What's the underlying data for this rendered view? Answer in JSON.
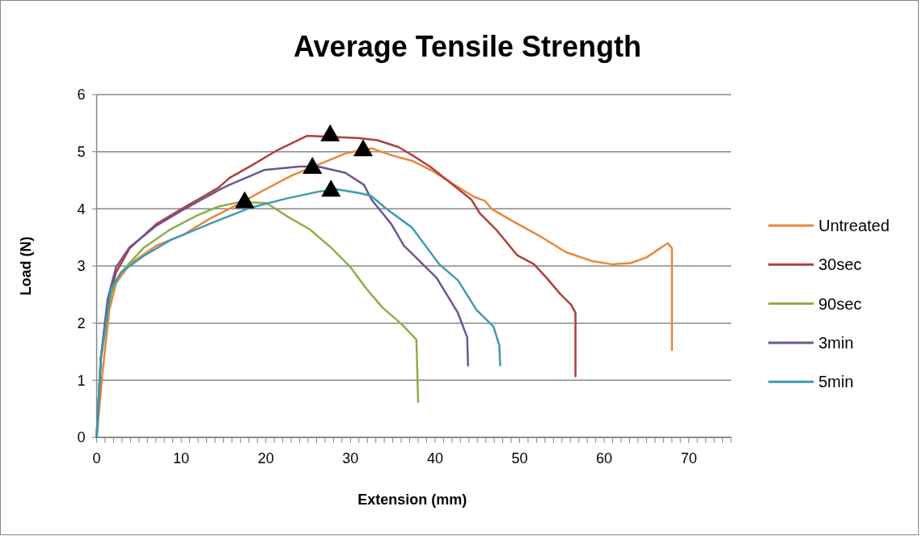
{
  "chart_data": {
    "type": "line",
    "title": "Average Tensile Strength",
    "xlabel": "Extension (mm)",
    "ylabel": "Load (N)",
    "xlim": [
      0,
      75
    ],
    "ylim": [
      0,
      6
    ],
    "xticks": [
      0,
      {
        "value": 1,
        "label": null
      },
      {
        "value": 2,
        "label": null
      },
      {
        "value": 3,
        "label": null
      },
      {
        "value": 4,
        "label": null
      },
      {
        "value": 5,
        "label": null
      },
      {
        "value": 6,
        "label": null
      },
      {
        "value": 7,
        "label": null
      },
      {
        "value": 8,
        "label": null
      },
      {
        "value": 9,
        "label": null
      },
      10,
      {
        "value": 11,
        "label": null
      },
      {
        "value": 12,
        "label": null
      },
      {
        "value": 13,
        "label": null
      },
      {
        "value": 14,
        "label": null
      },
      {
        "value": 15,
        "label": null
      },
      {
        "value": 16,
        "label": null
      },
      {
        "value": 17,
        "label": null
      },
      {
        "value": 18,
        "label": null
      },
      {
        "value": 19,
        "label": null
      },
      20,
      {
        "value": 21,
        "label": null
      },
      {
        "value": 22,
        "label": null
      },
      {
        "value": 23,
        "label": null
      },
      {
        "value": 24,
        "label": null
      },
      {
        "value": 25,
        "label": null
      },
      {
        "value": 26,
        "label": null
      },
      {
        "value": 27,
        "label": null
      },
      {
        "value": 28,
        "label": null
      },
      {
        "value": 29,
        "label": null
      },
      30,
      {
        "value": 31,
        "label": null
      },
      {
        "value": 32,
        "label": null
      },
      {
        "value": 33,
        "label": null
      },
      {
        "value": 34,
        "label": null
      },
      {
        "value": 35,
        "label": null
      },
      {
        "value": 36,
        "label": null
      },
      {
        "value": 37,
        "label": null
      },
      {
        "value": 38,
        "label": null
      },
      {
        "value": 39,
        "label": null
      },
      40,
      {
        "value": 41,
        "label": null
      },
      {
        "value": 42,
        "label": null
      },
      {
        "value": 43,
        "label": null
      },
      {
        "value": 44,
        "label": null
      },
      {
        "value": 45,
        "label": null
      },
      {
        "value": 46,
        "label": null
      },
      {
        "value": 47,
        "label": null
      },
      {
        "value": 48,
        "label": null
      },
      {
        "value": 49,
        "label": null
      },
      50,
      {
        "value": 51,
        "label": null
      },
      {
        "value": 52,
        "label": null
      },
      {
        "value": 53,
        "label": null
      },
      {
        "value": 54,
        "label": null
      },
      {
        "value": 55,
        "label": null
      },
      {
        "value": 56,
        "label": null
      },
      {
        "value": 57,
        "label": null
      },
      {
        "value": 58,
        "label": null
      },
      {
        "value": 59,
        "label": null
      },
      60,
      {
        "value": 61,
        "label": null
      },
      {
        "value": 62,
        "label": null
      },
      {
        "value": 63,
        "label": null
      },
      {
        "value": 64,
        "label": null
      },
      {
        "value": 65,
        "label": null
      },
      {
        "value": 66,
        "label": null
      },
      {
        "value": 67,
        "label": null
      },
      {
        "value": 68,
        "label": null
      },
      {
        "value": 69,
        "label": null
      },
      70,
      {
        "value": 71,
        "label": null
      },
      {
        "value": 72,
        "label": null
      },
      {
        "value": 73,
        "label": null
      },
      {
        "value": 74,
        "label": null
      },
      {
        "value": 75,
        "label": null
      }
    ],
    "yticks": [
      0,
      1,
      2,
      3,
      4,
      5,
      6
    ],
    "grid": "y",
    "legend": "right",
    "marker": "none",
    "line_style": "solid",
    "series": [
      {
        "name": "Untreated",
        "color": "#e8873a",
        "x": [
          0,
          0.7,
          1.5,
          2.3,
          3.9,
          7.1,
          10.3,
          13.4,
          16.6,
          19.8,
          23,
          29.4,
          32.5,
          34.8,
          37.3,
          39.5,
          42.1,
          44.6,
          45.9,
          46.7,
          49.1,
          52.3,
          55.5,
          58.7,
          60.9,
          63.1,
          65,
          67.5,
          68,
          68
        ],
        "values": [
          0,
          1.14,
          2.23,
          2.7,
          3.03,
          3.36,
          3.55,
          3.83,
          4.07,
          4.33,
          4.58,
          4.97,
          5.06,
          4.94,
          4.84,
          4.68,
          4.44,
          4.21,
          4.14,
          4.0,
          3.79,
          3.53,
          3.24,
          3.08,
          3.03,
          3.05,
          3.15,
          3.4,
          3.31,
          1.53
        ]
      },
      {
        "name": "30sec",
        "color": "#b0403d",
        "x": [
          0,
          0.5,
          1.3,
          2.3,
          3.9,
          7.1,
          10.3,
          14.4,
          15.7,
          18.2,
          21.4,
          24.9,
          30.9,
          33.2,
          35.7,
          37.3,
          39.5,
          42.7,
          44.3,
          45.3,
          47.2,
          49.7,
          51.7,
          53.2,
          54.8,
          56.1,
          56.6,
          56.6
        ],
        "values": [
          0,
          1.38,
          2.32,
          2.89,
          3.31,
          3.74,
          4.02,
          4.37,
          4.54,
          4.75,
          5.03,
          5.28,
          5.24,
          5.2,
          5.08,
          4.94,
          4.73,
          4.35,
          4.16,
          3.92,
          3.64,
          3.19,
          3.03,
          2.79,
          2.51,
          2.32,
          2.18,
          1.07
        ]
      },
      {
        "name": "90sec",
        "color": "#8cae4a",
        "x": [
          0,
          0.5,
          1.7,
          2.9,
          5.5,
          8.7,
          11.8,
          14.4,
          16.9,
          20.1,
          22.4,
          25.2,
          27.8,
          30,
          31.9,
          33.8,
          36,
          37.8,
          38
        ],
        "values": [
          0,
          1.38,
          2.51,
          2.89,
          3.31,
          3.64,
          3.88,
          4.04,
          4.12,
          4.1,
          3.88,
          3.64,
          3.31,
          2.98,
          2.6,
          2.27,
          1.99,
          1.71,
          0.62
        ]
      },
      {
        "name": "3min",
        "color": "#6f5397",
        "x": [
          0,
          0.5,
          1.3,
          2.3,
          3.9,
          7.1,
          10.3,
          14.7,
          15.7,
          19.8,
          24,
          26.2,
          29.4,
          31.6,
          32.5,
          34.8,
          36.3,
          40.2,
          42.7,
          43.8,
          43.9
        ],
        "values": [
          0,
          1.38,
          2.42,
          2.98,
          3.33,
          3.71,
          3.99,
          4.35,
          4.42,
          4.68,
          4.74,
          4.74,
          4.63,
          4.42,
          4.16,
          3.74,
          3.36,
          2.79,
          2.18,
          1.75,
          1.26
        ]
      },
      {
        "name": "5min",
        "color": "#3c9ab5",
        "x": [
          0,
          0.5,
          1.7,
          2.9,
          5.5,
          8.7,
          13.4,
          18.2,
          22.4,
          26.2,
          28.4,
          30.9,
          32.4,
          34.1,
          37.3,
          40.5,
          42.7,
          44.9,
          46.9,
          47.6,
          47.7
        ],
        "values": [
          0,
          1.38,
          2.6,
          2.89,
          3.17,
          3.45,
          3.74,
          4.02,
          4.18,
          4.3,
          4.34,
          4.28,
          4.23,
          4.02,
          3.67,
          3.03,
          2.75,
          2.23,
          1.94,
          1.61,
          1.26
        ]
      },
      {
        "type": "scatter",
        "marker": "triangle",
        "color": "#000000",
        "x": [
          17.5,
          25.5,
          27.6,
          27.7,
          31.5
        ],
        "values": [
          4.14,
          4.74,
          5.31,
          4.34,
          5.05
        ]
      }
    ]
  }
}
